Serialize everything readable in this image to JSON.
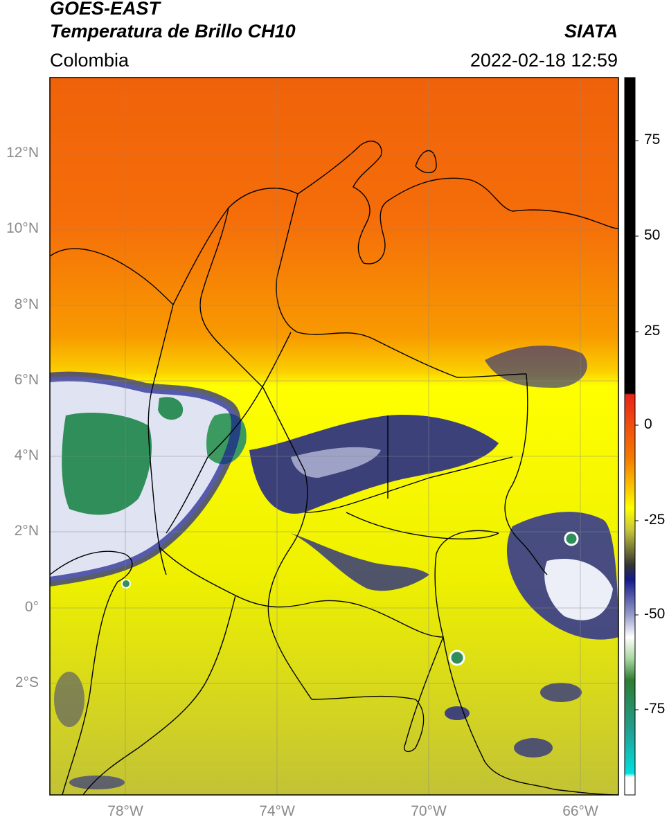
{
  "header": {
    "satellite": "GOES-EAST",
    "product": "Temperatura de Brillo CH10",
    "organization": "SIATA",
    "region": "Colombia",
    "datetime": "2022-02-18 12:59"
  },
  "map": {
    "latitude_labels": [
      {
        "lat": 12,
        "label": "12°N"
      },
      {
        "lat": 10,
        "label": "10°N"
      },
      {
        "lat": 8,
        "label": "8°N"
      },
      {
        "lat": 6,
        "label": "6°N"
      },
      {
        "lat": 4,
        "label": "4°N"
      },
      {
        "lat": 2,
        "label": "2°N"
      },
      {
        "lat": 0,
        "label": "0°"
      },
      {
        "lat": -2,
        "label": "2°S"
      }
    ],
    "longitude_labels": [
      {
        "lon": -78,
        "label": "78°W"
      },
      {
        "lon": -74,
        "label": "74°W"
      },
      {
        "lon": -70,
        "label": "70°W"
      },
      {
        "lon": -66,
        "label": "66°W"
      }
    ],
    "extent": {
      "lon_min": -80,
      "lon_max": -65,
      "lat_min": -5,
      "lat_max": 14
    },
    "gridlines": true
  },
  "colorbar": {
    "ticks": [
      {
        "value": 75,
        "label": "75"
      },
      {
        "value": 50,
        "label": "50"
      },
      {
        "value": 25,
        "label": "25"
      },
      {
        "value": 0,
        "label": "0"
      },
      {
        "value": -25,
        "label": "-25"
      },
      {
        "value": -50,
        "label": "-50"
      },
      {
        "value": -75,
        "label": "-75"
      }
    ],
    "range": [
      -95,
      90
    ],
    "colors": {
      "black": "#000000",
      "red": "#e8231a",
      "orange": "#f57a00",
      "yellow": "#ffff00",
      "olive": "#c8c83a",
      "navy": "#151a8c",
      "white": "#ffffff",
      "green": "#2e8b57",
      "cyan": "#00e0e0"
    }
  }
}
